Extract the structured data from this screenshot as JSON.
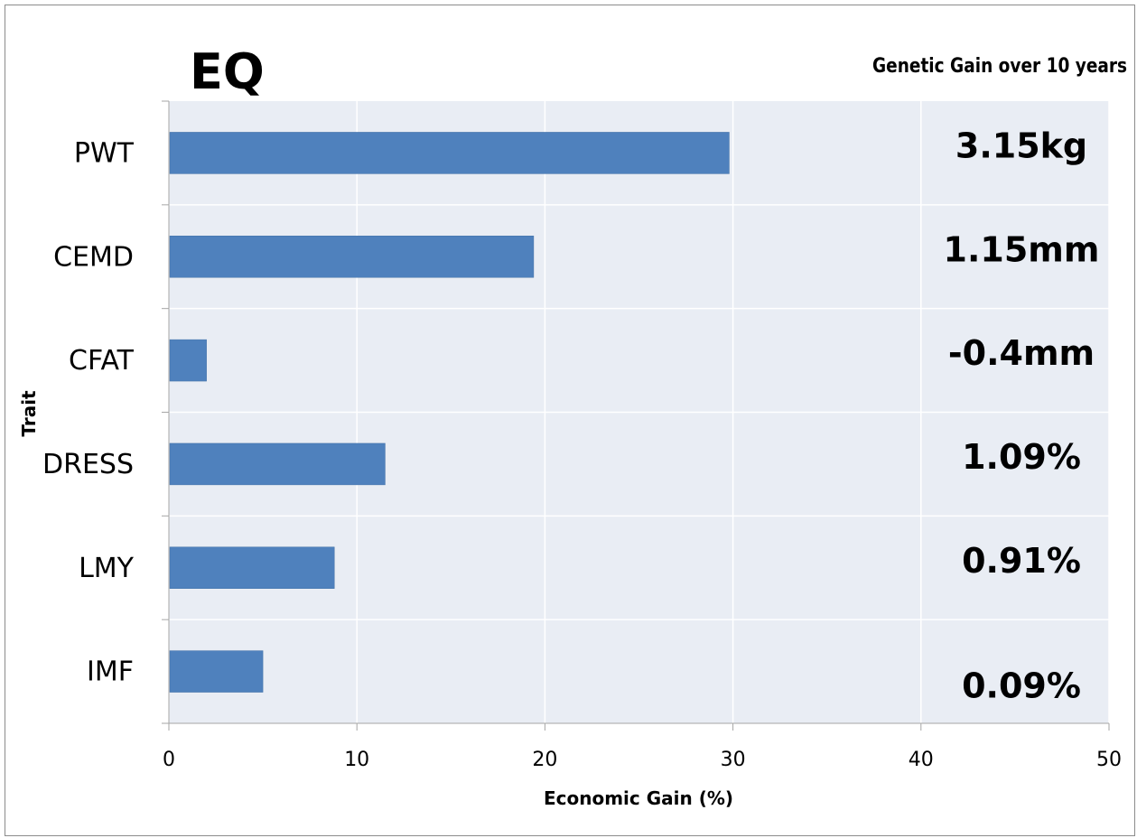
{
  "chart_data": {
    "type": "bar",
    "orientation": "horizontal",
    "title": "EQ",
    "subtitle": "Genetic Gain over 10 years",
    "xlabel": "Economic Gain (%)",
    "ylabel": "Trait",
    "categories": [
      "PWT",
      "CEMD",
      "CFAT",
      "DRESS",
      "LMY",
      "IMF"
    ],
    "values": [
      29.8,
      19.4,
      2.0,
      11.5,
      8.8,
      5.0
    ],
    "genetic_gain_labels": [
      "3.15kg",
      "1.15mm",
      "-0.4mm",
      "1.09%",
      "0.91%",
      "0.09%"
    ],
    "xlim": [
      0,
      50
    ],
    "xticks": [
      "0",
      "10",
      "20",
      "30",
      "40",
      "50"
    ],
    "grid": true,
    "colors": {
      "bar": "#4f81bd",
      "plot_bg": "#e9edf4",
      "grid": "#ffffff"
    }
  }
}
